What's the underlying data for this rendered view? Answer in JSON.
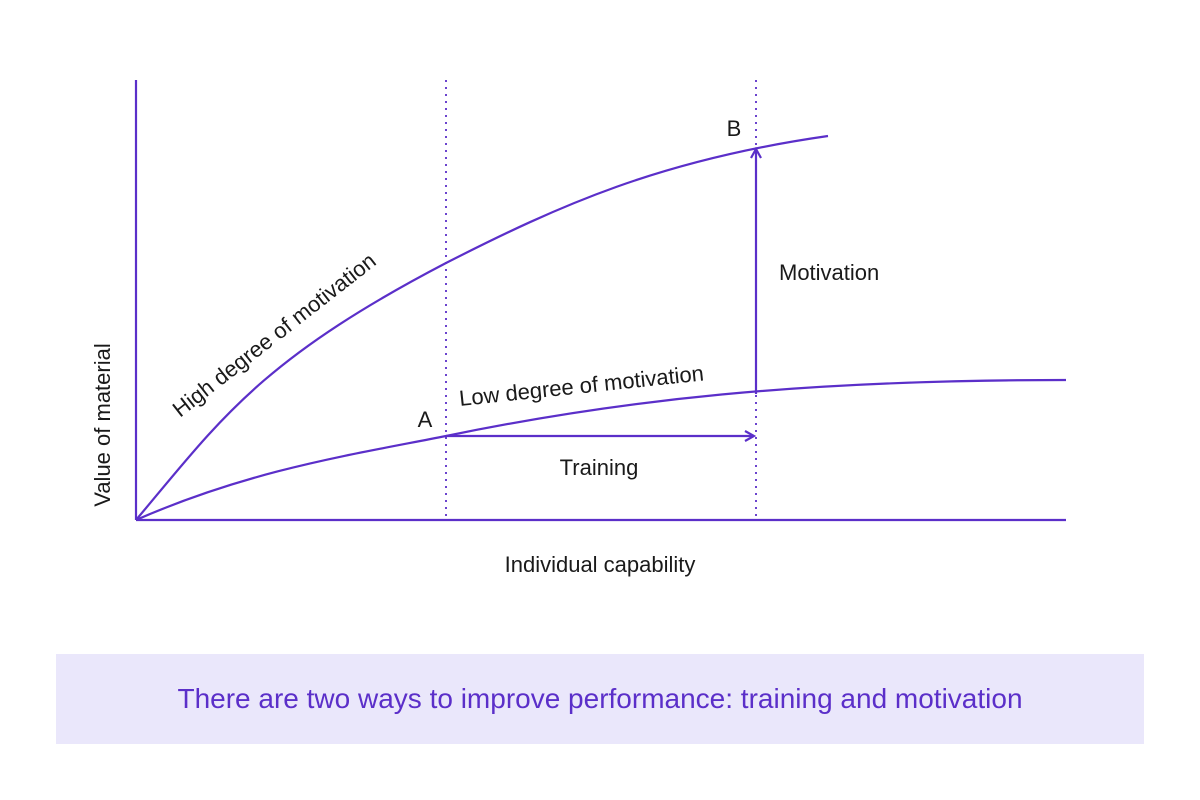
{
  "diagram": {
    "ylabel": "Value of material",
    "xlabel": "Individual capability",
    "high_curve_label": "High degree of motivation",
    "low_curve_label": "Low degree of motivation",
    "point_a": "A",
    "point_b": "B",
    "training_label": "Training",
    "motivation_label": "Motivation",
    "line_color": "#5b2fc9"
  },
  "caption": {
    "text": "There are two ways to improve performance: training and motivation"
  }
}
